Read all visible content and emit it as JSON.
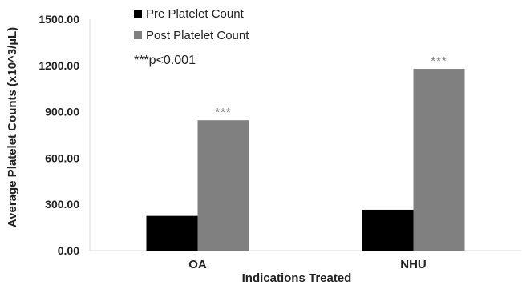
{
  "chart_data": {
    "type": "bar",
    "xlabel": "Indications Treated",
    "ylabel": "Average Platelet Counts (x10^3/µL)",
    "categories": [
      "OA",
      "NHU"
    ],
    "ylim": [
      0,
      1500
    ],
    "yticks": [
      0,
      300,
      600,
      900,
      1200,
      1500
    ],
    "ytick_labels": [
      "0.00",
      "300.00",
      "600.00",
      "900.00",
      "1200.00",
      "1500.00"
    ],
    "series": [
      {
        "name": "Pre Platelet Count",
        "color": "#000000",
        "values": [
          225,
          265
        ]
      },
      {
        "name": "Post Platelet Count",
        "color": "#808080",
        "values": [
          845,
          1178
        ]
      }
    ],
    "significance_markers": [
      "***",
      "***"
    ],
    "annotation": "***p<0.001",
    "grid": false,
    "legend_position": "top-left"
  }
}
